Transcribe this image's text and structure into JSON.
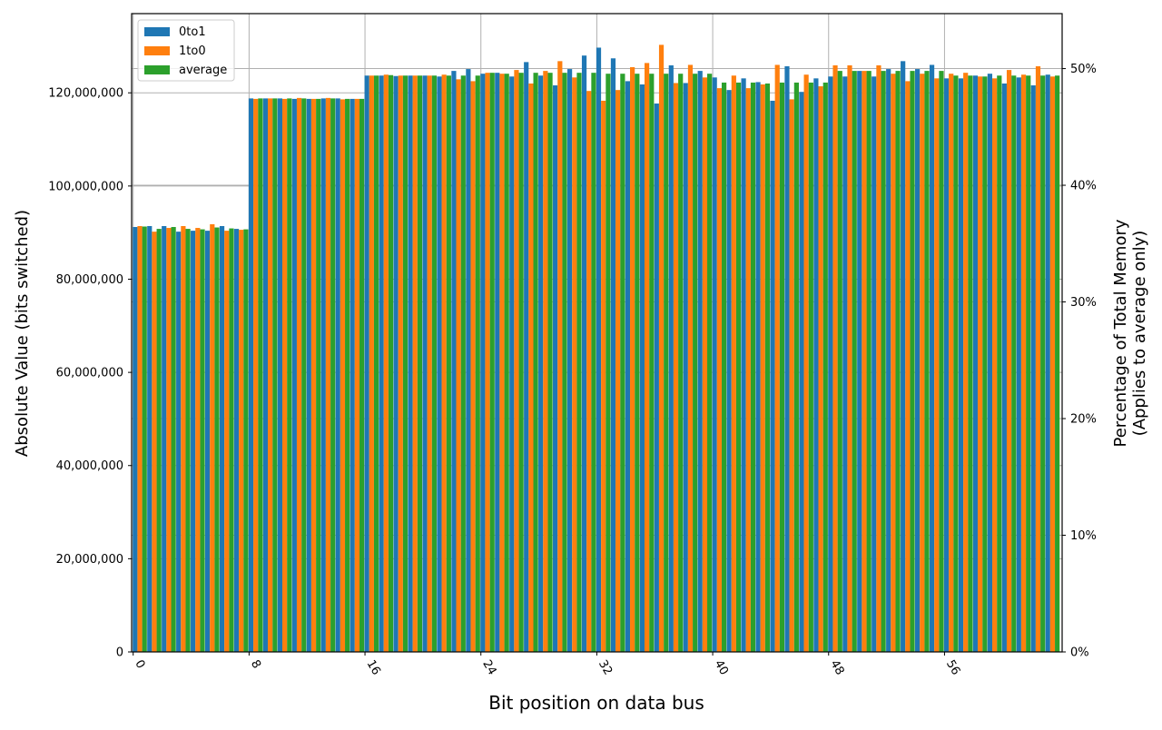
{
  "chart_data": {
    "type": "bar",
    "title": "",
    "xlabel": "Bit position on data bus",
    "ylabel": "Absolute Value (bits switched)",
    "ylabel_right": [
      "Percentage of Total Memory",
      "(Applies to average only)"
    ],
    "ylim": [
      0,
      137000000
    ],
    "ylim_right_pct": [
      0,
      54.7
    ],
    "right_axis_total_bits": 250400000,
    "grid": true,
    "legend_position": "upper left",
    "x_ticks": [
      0,
      8,
      16,
      24,
      32,
      40,
      48,
      56
    ],
    "y_ticks": [
      0,
      20000000,
      40000000,
      60000000,
      80000000,
      100000000,
      120000000
    ],
    "y_tick_labels": [
      "0",
      "20,000,000",
      "40,000,000",
      "60,000,000",
      "80,000,000",
      "100,000,000",
      "120,000,000"
    ],
    "y_right_ticks": [
      "0%",
      "10%",
      "20%",
      "30%",
      "40%",
      "50%"
    ],
    "categories": [
      0,
      1,
      2,
      3,
      4,
      5,
      6,
      7,
      8,
      9,
      10,
      11,
      12,
      13,
      14,
      15,
      16,
      17,
      18,
      19,
      20,
      21,
      22,
      23,
      24,
      25,
      26,
      27,
      28,
      29,
      30,
      31,
      32,
      33,
      34,
      35,
      36,
      37,
      38,
      39,
      40,
      41,
      42,
      43,
      44,
      45,
      46,
      47,
      48,
      49,
      50,
      51,
      52,
      53,
      54,
      55,
      56,
      57,
      58,
      59,
      60,
      61,
      62,
      63
    ],
    "series": [
      {
        "name": "0to1",
        "color": "#1f77b4",
        "values": [
          91.2,
          91.4,
          91.4,
          90.2,
          90.4,
          90.4,
          91.4,
          90.8,
          118.8,
          118.8,
          118.8,
          118.7,
          118.7,
          118.8,
          118.8,
          118.7,
          123.7,
          123.7,
          123.6,
          123.7,
          123.7,
          123.5,
          124.7,
          125.1,
          124.1,
          124.3,
          123.5,
          126.6,
          123.7,
          121.6,
          125.1,
          128.0,
          129.7,
          127.4,
          122.5,
          121.8,
          117.7,
          125.9,
          122.1,
          124.7,
          123.3,
          120.6,
          123.1,
          122.3,
          118.3,
          125.7,
          120.2,
          123.1,
          123.5,
          123.5,
          124.7,
          123.5,
          125.1,
          126.8,
          125.1,
          126.0,
          123.1,
          123.1,
          123.7,
          124.1,
          122.0,
          123.3,
          121.6,
          123.9
        ]
      },
      {
        "name": "1to0",
        "color": "#ff7f0e",
        "values": [
          91.4,
          90.2,
          91.0,
          91.4,
          91.0,
          91.8,
          90.4,
          90.6,
          118.7,
          118.8,
          118.7,
          118.9,
          118.7,
          118.9,
          118.6,
          118.7,
          123.7,
          123.9,
          123.7,
          123.7,
          123.7,
          123.9,
          122.9,
          122.5,
          124.3,
          124.1,
          124.9,
          122.0,
          124.7,
          126.8,
          123.3,
          120.4,
          118.3,
          120.6,
          125.5,
          126.4,
          130.3,
          122.1,
          126.0,
          123.3,
          121.0,
          123.7,
          121.0,
          121.8,
          126.0,
          118.6,
          123.9,
          121.4,
          125.9,
          125.9,
          124.7,
          125.9,
          124.1,
          122.5,
          124.1,
          123.1,
          124.1,
          124.3,
          123.5,
          123.1,
          124.9,
          123.9,
          125.7,
          123.5
        ]
      },
      {
        "name": "average",
        "color": "#2ca02c",
        "values": [
          91.3,
          90.8,
          91.2,
          90.8,
          90.7,
          91.1,
          90.9,
          90.7,
          118.8,
          118.8,
          118.8,
          118.8,
          118.7,
          118.8,
          118.7,
          118.7,
          123.7,
          123.8,
          123.7,
          123.7,
          123.7,
          123.7,
          123.7,
          123.7,
          124.3,
          124.1,
          124.3,
          124.3,
          124.3,
          124.3,
          124.3,
          124.3,
          124.1,
          124.1,
          124.1,
          124.1,
          124.1,
          124.1,
          124.1,
          124.1,
          122.2,
          122.2,
          122.2,
          122.0,
          122.2,
          122.2,
          122.2,
          122.2,
          124.7,
          124.7,
          124.7,
          124.7,
          124.7,
          124.7,
          124.7,
          124.7,
          123.7,
          123.7,
          123.5,
          123.7,
          123.7,
          123.7,
          123.7,
          123.7
        ]
      }
    ],
    "value_unit": "millions of bits"
  },
  "legend": {
    "items": [
      {
        "label": "0to1",
        "color": "#1f77b4"
      },
      {
        "label": "1to0",
        "color": "#ff7f0e"
      },
      {
        "label": "average",
        "color": "#2ca02c"
      }
    ]
  }
}
